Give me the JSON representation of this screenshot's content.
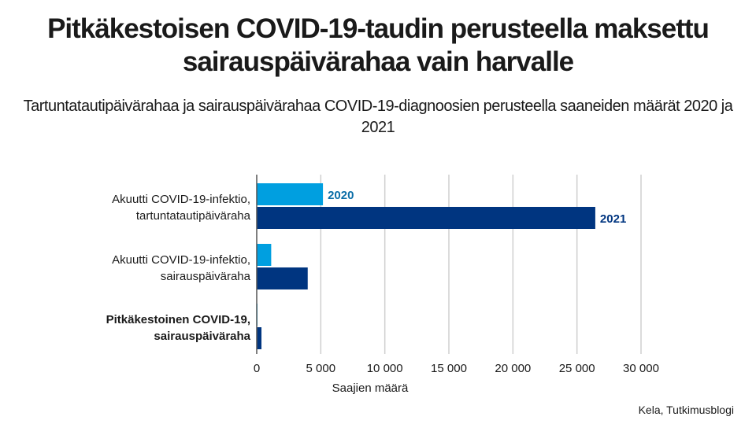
{
  "chart_data": {
    "type": "bar",
    "orientation": "horizontal",
    "title": "Pitkäkestoisen COVID-19-taudin perusteella maksettu sairauspäivärahaa vain harvalle",
    "subtitle": "Tartuntatautipäivärahaa ja sairauspäivärahaa COVID-19-diagnoosien perusteella saaneiden määrät 2020 ja 2021",
    "categories": [
      [
        "Akuutti COVID-19-infektio,",
        "tartuntatautipäiväraha"
      ],
      [
        "Akuutti COVID-19-infektio,",
        "sairauspäiväraha"
      ],
      [
        "Pitkäkestoinen COVID-19,",
        "sairauspäiväraha"
      ]
    ],
    "series": [
      {
        "name": "2020",
        "color": "#009fe0",
        "values": [
          5170,
          1130,
          20
        ]
      },
      {
        "name": "2021",
        "color": "#003580",
        "values": [
          26430,
          3980,
          370
        ]
      }
    ],
    "xlabel": "Saajien määrä",
    "xlim": [
      0,
      30000
    ],
    "xticks": [
      0,
      5000,
      10000,
      15000,
      20000,
      25000,
      30000
    ],
    "xtick_labels": [
      "0",
      "5 000",
      "10 000",
      "15 000",
      "20 000",
      "25 000",
      "30 000"
    ],
    "grid": true,
    "legend": "inline labels on first category"
  },
  "source": "Kela, Tutkimusblogi"
}
